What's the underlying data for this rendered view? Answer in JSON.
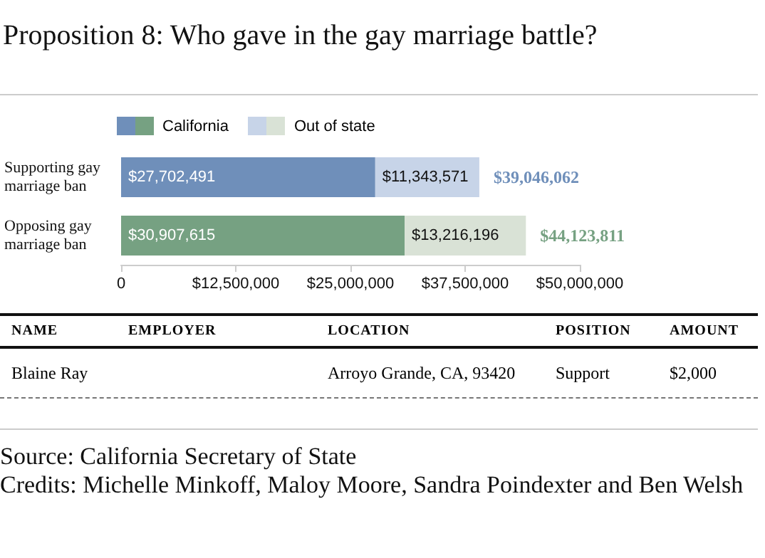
{
  "chart_data": {
    "type": "bar",
    "title": "Proposition 8: Who gave in the gay marriage battle?",
    "orientation": "horizontal",
    "stacked": true,
    "categories": [
      "Supporting gay marriage ban",
      "Opposing gay marriage ban"
    ],
    "series": [
      {
        "name": "California",
        "colors": [
          "#6f8fba",
          "#76a182"
        ],
        "values": [
          27702491,
          30907615
        ],
        "value_labels": [
          "$27,702,491",
          "$30,907,615"
        ]
      },
      {
        "name": "Out of state",
        "colors": [
          "#c7d4e8",
          "#d9e2d6"
        ],
        "values": [
          11343571,
          13216196
        ],
        "value_labels": [
          "$11,343,571",
          "$13,216,196"
        ]
      }
    ],
    "totals": [
      "$39,046,062",
      "$44,123,811"
    ],
    "xlim": [
      0,
      50000000
    ],
    "xticks": [
      0,
      {
        "value": 12500000,
        "label": "$12,500,000"
      },
      {
        "value": 25000000,
        "label": "$25,000,000"
      },
      {
        "value": 37500000,
        "label": "$37,500,000"
      },
      {
        "value": 50000000,
        "label": "$50,000,000"
      }
    ],
    "grid": false,
    "legend": "top",
    "annotations": [
      "NAME",
      "EMPLOYER",
      "LOCATION",
      "POSITION",
      "AMOUNT",
      "Blaine Ray",
      "Arroyo Grande, CA, 93420",
      "Support",
      "$2,000",
      "Source: California Secretary of State",
      "Credits: Michelle Minkoff, Maloy Moore, Sandra Poindexter and Ben Welsh"
    ]
  }
}
